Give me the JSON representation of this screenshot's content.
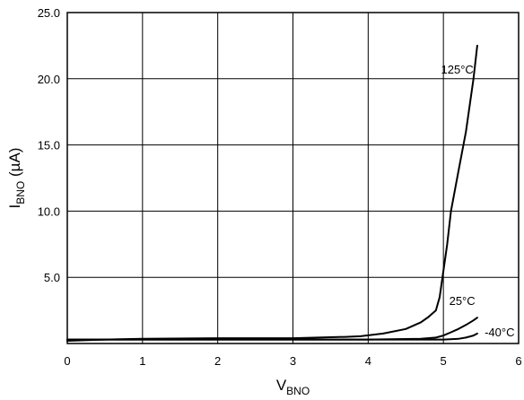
{
  "chart_data": {
    "type": "line",
    "title": "",
    "xlabel": "V",
    "xlabel_sub": "BNO",
    "ylabel": "I",
    "ylabel_sub": "BNO",
    "ylabel_unit": " (µA)",
    "xlim": [
      0,
      6
    ],
    "ylim": [
      0,
      25
    ],
    "x_ticks": [
      0,
      1,
      2,
      3,
      4,
      5,
      6
    ],
    "x_tick_labels": [
      "0",
      "1",
      "2",
      "3",
      "4",
      "5",
      "6"
    ],
    "y_ticks": [
      5,
      10,
      15,
      20,
      25
    ],
    "y_tick_labels": [
      "5.0",
      "10.0",
      "15.0",
      "20.0",
      "25.0"
    ],
    "grid": true,
    "legend": "inline labels",
    "series": [
      {
        "name": "125°C",
        "x": [
          0,
          0.5,
          1.0,
          2.0,
          3.0,
          3.7,
          3.9,
          4.2,
          4.5,
          4.7,
          4.8,
          4.9,
          4.95,
          5.0,
          5.05,
          5.1,
          5.2,
          5.3,
          5.4,
          5.45
        ],
        "y": [
          0.2,
          0.3,
          0.35,
          0.4,
          0.4,
          0.5,
          0.55,
          0.75,
          1.1,
          1.6,
          2.0,
          2.5,
          3.5,
          5.5,
          7.5,
          10.0,
          13.0,
          16.0,
          20.0,
          22.5
        ]
      },
      {
        "name": "25°C",
        "x": [
          0,
          1.0,
          2.0,
          3.0,
          4.0,
          4.7,
          4.9,
          5.0,
          5.1,
          5.2,
          5.3,
          5.4,
          5.45
        ],
        "y": [
          0.3,
          0.3,
          0.3,
          0.3,
          0.3,
          0.35,
          0.45,
          0.6,
          0.85,
          1.1,
          1.4,
          1.75,
          1.95
        ]
      },
      {
        "name": "-40°C",
        "x": [
          0,
          1.0,
          2.0,
          3.0,
          4.0,
          5.0,
          5.2,
          5.3,
          5.4,
          5.45
        ],
        "y": [
          0.3,
          0.3,
          0.3,
          0.3,
          0.3,
          0.3,
          0.35,
          0.45,
          0.6,
          0.75
        ]
      }
    ]
  }
}
